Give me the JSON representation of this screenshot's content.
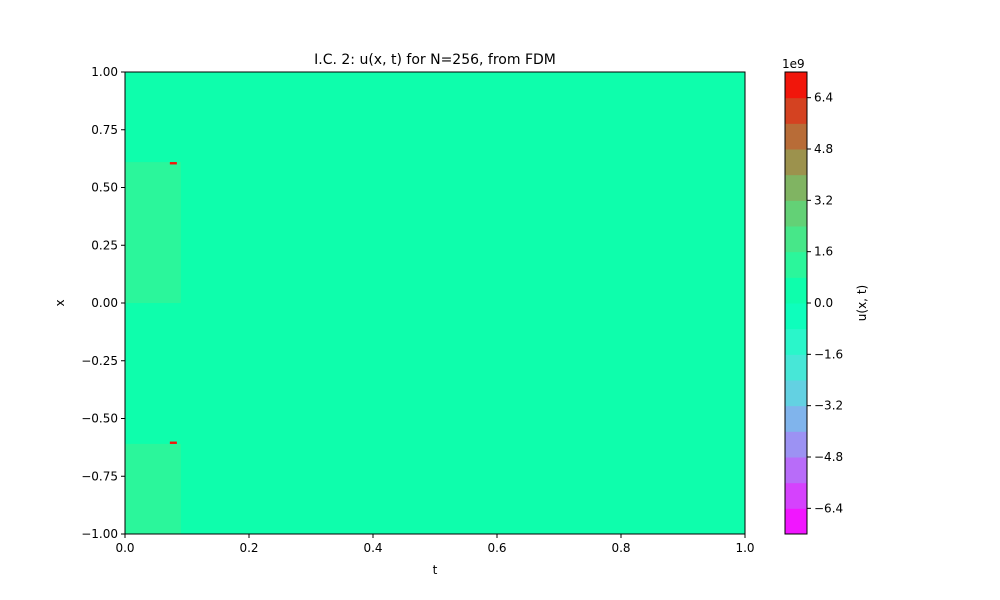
{
  "chart_data": {
    "type": "heatmap",
    "title": "I.C. 2: u(x, t) for N=256, from FDM",
    "xlabel": "t",
    "ylabel": "x",
    "xlim": [
      0,
      1
    ],
    "ylim": [
      -1,
      1
    ],
    "x_ticks": [
      "0.0",
      "0.2",
      "0.4",
      "0.6",
      "0.8",
      "1.0"
    ],
    "y_ticks": [
      "1.00",
      "0.75",
      "0.50",
      "0.25",
      "0.00",
      "−0.25",
      "−0.50",
      "−0.75",
      "−1.00"
    ],
    "background_value": 0,
    "regions": [
      {
        "t": [
          0,
          0.09
        ],
        "x": [
          0,
          0.61
        ],
        "value": 1000000000.0
      },
      {
        "t": [
          0,
          0.09
        ],
        "x": [
          -1,
          -0.61
        ],
        "value": 1000000000.0
      }
    ],
    "spikes": [
      {
        "t": 0.078,
        "x": 0.605,
        "value": 7200000000.0
      },
      {
        "t": 0.078,
        "x": -0.605,
        "value": 7200000000.0
      }
    ],
    "colorbar": {
      "label": "u(x, t)",
      "exponent_label": "1e9",
      "range": [
        -7.2,
        7.2
      ],
      "ticks": [
        6.4,
        4.8,
        3.2,
        1.6,
        0.0,
        -1.6,
        -3.2,
        -4.8,
        -6.4
      ],
      "tick_labels": [
        "6.4",
        "4.8",
        "3.2",
        "1.6",
        "0.0",
        "−1.6",
        "−3.2",
        "−4.8",
        "−6.4"
      ],
      "levels": 18,
      "colormap": "rainbow"
    }
  }
}
